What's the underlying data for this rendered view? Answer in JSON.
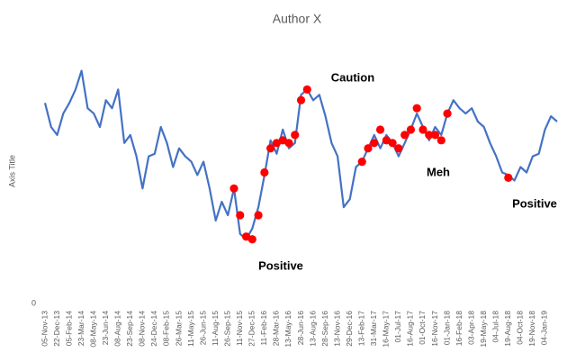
{
  "chart_data": {
    "type": "line",
    "title": "Author X",
    "y_label": "Axis Title",
    "categories": [
      "05-Nov-13",
      null,
      "22-Dec-13",
      null,
      "05-Feb-14",
      null,
      "23-Mar-14",
      null,
      "08-May-14",
      null,
      "23-Jun-14",
      null,
      "08-Aug-14",
      null,
      "23-Sep-14",
      null,
      "08-Nov-14",
      null,
      "24-Dec-14",
      null,
      "08-Feb-15",
      null,
      "26-Mar-15",
      null,
      "11-May-15",
      null,
      "26-Jun-15",
      null,
      "11-Aug-15",
      null,
      "26-Sep-15",
      null,
      "11-Nov-15",
      null,
      "27-Dec-15",
      null,
      "11-Feb-16",
      null,
      "28-Mar-16",
      null,
      "13-May-16",
      null,
      "28-Jun-16",
      null,
      "13-Aug-16",
      null,
      "28-Sep-16",
      null,
      "13-Nov-16",
      null,
      "29-Dec-16",
      null,
      "13-Feb-17",
      null,
      "31-Mar-17",
      null,
      "16-May-17",
      null,
      "01-Jul-17",
      null,
      "16-Aug-17",
      null,
      "01-Oct-17",
      null,
      "16-Nov-17",
      null,
      "01-Jan-18",
      null,
      "16-Feb-18",
      null,
      "03-Apr-18",
      null,
      "19-May-18",
      null,
      "04-Jul-18",
      null,
      "19-Aug-18",
      null,
      "04-Oct-18",
      null,
      "19-Nov-18",
      null,
      "04-Jan-19",
      null,
      null
    ],
    "series": [
      {
        "color": "#4472c4",
        "values": [
          75,
          66,
          63,
          71,
          75,
          80,
          87,
          73,
          71,
          66,
          76,
          73,
          80,
          60,
          63,
          55,
          43,
          55,
          56,
          66,
          60,
          51,
          58,
          55,
          53,
          48,
          53,
          43,
          31,
          38,
          33,
          43,
          26,
          24,
          28,
          36,
          48,
          61,
          56,
          65,
          58,
          60,
          78,
          80,
          76,
          78,
          70,
          60,
          55,
          36,
          39,
          51,
          53,
          58,
          63,
          58,
          63,
          60,
          55,
          60,
          65,
          71,
          66,
          61,
          66,
          63,
          71,
          76,
          73,
          71,
          73,
          68,
          66,
          60,
          55,
          49,
          48,
          46,
          51,
          49,
          55,
          56,
          65,
          70,
          68
        ]
      },
      {
        "color": "#ff0000",
        "style": "markers",
        "values": [
          null,
          null,
          null,
          null,
          null,
          null,
          null,
          null,
          null,
          null,
          null,
          null,
          null,
          null,
          null,
          null,
          null,
          null,
          null,
          null,
          null,
          null,
          null,
          null,
          null,
          null,
          null,
          null,
          null,
          null,
          null,
          43,
          33,
          25,
          24,
          33,
          49,
          58,
          60,
          61,
          60,
          63,
          76,
          80,
          null,
          null,
          null,
          null,
          null,
          null,
          null,
          null,
          53,
          58,
          60,
          65,
          61,
          60,
          58,
          63,
          65,
          73,
          65,
          63,
          63,
          61,
          71,
          null,
          null,
          null,
          null,
          null,
          null,
          null,
          null,
          null,
          47,
          null,
          null,
          null,
          null,
          null,
          null,
          null,
          null
        ]
      }
    ],
    "ylim": [
      0,
      100
    ],
    "yticks": [
      0
    ],
    "grid": false,
    "annotations": [
      {
        "text": "Caution"
      },
      {
        "text": "Meh"
      },
      {
        "text": "Positive"
      },
      {
        "text": "Positive"
      }
    ]
  }
}
